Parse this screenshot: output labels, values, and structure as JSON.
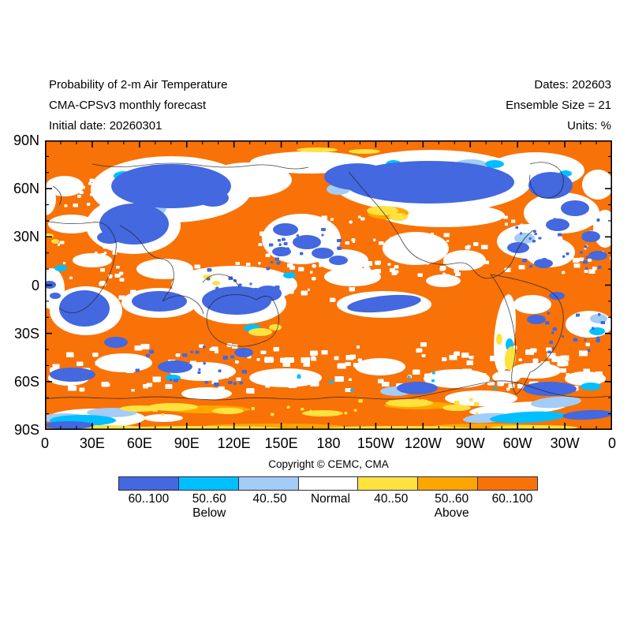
{
  "header": {
    "title_lines": [
      "Probability of 2-m Air Temperature",
      "CMA-CPSv3 monthly forecast",
      "Initial date: 20260301"
    ],
    "info_lines": [
      "Dates: 202603",
      "Ensemble Size = 21",
      "Units: %"
    ]
  },
  "map": {
    "background_color": "#F87208",
    "frame_color": "#000000",
    "y_tick_labels": [
      "90N",
      "60N",
      "30N",
      "0",
      "30S",
      "60S",
      "90S"
    ],
    "x_tick_labels": [
      "0",
      "30E",
      "60E",
      "90E",
      "120E",
      "150E",
      "180",
      "150W",
      "120W",
      "90W",
      "60W",
      "30W",
      "0"
    ]
  },
  "footer": {
    "copyright": "Copyright © CEMC, CMA"
  },
  "legend": {
    "below_label": "Below",
    "above_label": "Above",
    "entries": [
      {
        "label": "60..100",
        "color": "#4368DF",
        "side": "below"
      },
      {
        "label": "50..60",
        "color": "#00BFFF",
        "side": "below"
      },
      {
        "label": "40..50",
        "color": "#A3CCF6",
        "side": "below"
      },
      {
        "label": "Normal",
        "color": "#FFFFFF",
        "side": "normal"
      },
      {
        "label": "40..50",
        "color": "#FFE23E",
        "side": "above"
      },
      {
        "label": "50..60",
        "color": "#FFA500",
        "side": "above"
      },
      {
        "label": "60..100",
        "color": "#F87208",
        "side": "above"
      }
    ]
  },
  "chart_data": {
    "type": "heatmap",
    "title": "Probability of 2-m Air Temperature",
    "model": "CMA-CPSv3 monthly forecast",
    "initial_date": "20260301",
    "forecast_month": "202603",
    "ensemble_size": 21,
    "units": "%",
    "projection": "equirectangular world map, longitude 0E eastward to 0 (360), latitude 90N to 90S",
    "x_axis": {
      "ticks": [
        "0",
        "30E",
        "60E",
        "90E",
        "120E",
        "150E",
        "180",
        "150W",
        "120W",
        "90W",
        "60W",
        "30W",
        "0"
      ],
      "major_tick_deg": 30,
      "minor_tick_deg": 10
    },
    "y_axis": {
      "ticks": [
        "90N",
        "60N",
        "30N",
        "0",
        "30S",
        "60S",
        "90S"
      ],
      "major_tick_deg": 30,
      "minor_tick_deg": 10
    },
    "legend_categories": [
      {
        "label": "60..100",
        "side": "Below",
        "color": "#4368DF"
      },
      {
        "label": "50..60",
        "side": "Below",
        "color": "#00BFFF"
      },
      {
        "label": "40..50",
        "side": "Below",
        "color": "#A3CCF6"
      },
      {
        "label": "Normal",
        "side": "",
        "color": "#FFFFFF"
      },
      {
        "label": "40..50",
        "side": "Above",
        "color": "#FFE23E"
      },
      {
        "label": "50..60",
        "side": "Above",
        "color": "#FFA500"
      },
      {
        "label": "60..100",
        "side": "Above",
        "color": "#F87208"
      }
    ],
    "dominant_category": "Above 60..100 (dark orange) covers most of the globe",
    "notable_features": [
      "Large Below 60..100 (blue) anomaly over western Siberia and Central Asia (~40E-115E, 25N-72N) with white Normal fringe",
      "Large blue anomaly over Alaska, Canada and Greenland (~170W-40W, 50N-80N) with yellow patches on its southwest edge",
      "Blue patches over the subtropical North Pacific east of Japan (~140E-175E, 15N-40N)",
      "Blue areas over the Maritime Continent and northwest Australia (~100E-140E, 0-22S)",
      "Blue blobs in the tropical Indian Ocean (~55E-90E, 5S-18S) and over southern Africa (~12E-38E, 5S-28S)",
      "Elongated blue band in the South Pacific (~175W-135W, 8S-18S)",
      "Scattered Normal (white) speckling across Southern Ocean mid-latitudes, tropical oceans and North Atlantic",
      "Below-normal blue/cyan bands along the Antarctic coast near 0-30E and 60W-0",
      "Yellow Above 40..50 fringes along the Antarctic coastline, southern Australia and Patagonia"
    ]
  }
}
